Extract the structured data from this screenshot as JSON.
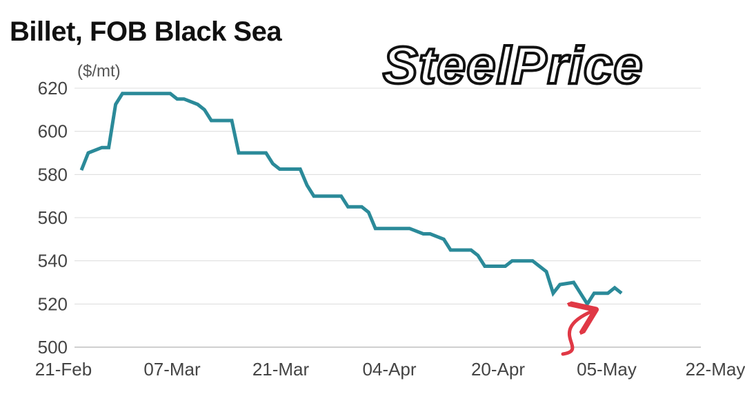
{
  "chart_data": {
    "type": "line",
    "title": "Billet, FOB Black Sea",
    "ylabel": "($/mt)",
    "xlabel": "",
    "ylim": [
      500,
      620
    ],
    "yticks": [
      500,
      520,
      540,
      560,
      580,
      600,
      620
    ],
    "xtick_labels": [
      "21-Feb",
      "07-Mar",
      "21-Mar",
      "04-Apr",
      "20-Apr",
      "05-May",
      "22-May"
    ],
    "x_range": [
      "21-Feb",
      "22-May"
    ],
    "grid": true,
    "line_color": "#2b8a99",
    "series": [
      {
        "points": [
          [
            "21-Feb",
            582
          ],
          [
            "22-Feb",
            590
          ],
          [
            "24-Feb",
            592.5
          ],
          [
            "25-Feb",
            592.5
          ],
          [
            "26-Feb",
            612.5
          ],
          [
            "27-Feb",
            617.5
          ],
          [
            "01-Mar",
            617.5
          ],
          [
            "02-Mar",
            617.5
          ],
          [
            "03-Mar",
            617.5
          ],
          [
            "04-Mar",
            617.5
          ],
          [
            "06-Mar",
            617.5
          ],
          [
            "07-Mar",
            615
          ],
          [
            "08-Mar",
            615
          ],
          [
            "10-Mar",
            612.5
          ],
          [
            "11-Mar",
            610
          ],
          [
            "12-Mar",
            605
          ],
          [
            "14-Mar",
            605
          ],
          [
            "15-Mar",
            605
          ],
          [
            "16-Mar",
            590
          ],
          [
            "17-Mar",
            590
          ],
          [
            "18-Mar",
            590
          ],
          [
            "20-Mar",
            590
          ],
          [
            "21-Mar",
            585
          ],
          [
            "22-Mar",
            582.5
          ],
          [
            "24-Mar",
            582.5
          ],
          [
            "25-Mar",
            582.5
          ],
          [
            "26-Mar",
            575
          ],
          [
            "27-Mar",
            570
          ],
          [
            "29-Mar",
            570
          ],
          [
            "30-Mar",
            570
          ],
          [
            "31-Mar",
            570
          ],
          [
            "01-Apr",
            565
          ],
          [
            "03-Apr",
            565
          ],
          [
            "04-Apr",
            562.5
          ],
          [
            "05-Apr",
            555
          ],
          [
            "07-Apr",
            555
          ],
          [
            "08-Apr",
            555
          ],
          [
            "09-Apr",
            555
          ],
          [
            "10-Apr",
            555
          ],
          [
            "12-Apr",
            552.5
          ],
          [
            "13-Apr",
            552.5
          ],
          [
            "15-Apr",
            550
          ],
          [
            "16-Apr",
            545
          ],
          [
            "17-Apr",
            545
          ],
          [
            "19-Apr",
            545
          ],
          [
            "20-Apr",
            542.5
          ],
          [
            "21-Apr",
            537.5
          ],
          [
            "23-Apr",
            537.5
          ],
          [
            "24-Apr",
            537.5
          ],
          [
            "25-Apr",
            540
          ],
          [
            "26-Apr",
            540
          ],
          [
            "28-Apr",
            540
          ],
          [
            "29-Apr",
            537.5
          ],
          [
            "30-Apr",
            535
          ],
          [
            "01-May",
            525
          ],
          [
            "02-May",
            529
          ],
          [
            "04-May",
            530
          ],
          [
            "05-May",
            525
          ],
          [
            "06-May",
            520
          ],
          [
            "07-May",
            525
          ],
          [
            "09-May",
            525
          ],
          [
            "10-May",
            527.5
          ],
          [
            "11-May",
            525
          ]
        ]
      }
    ],
    "annotation": {
      "type": "arrow",
      "color": "#e03845",
      "points_to": [
        "06-May",
        520
      ]
    },
    "watermark": "SteelPrice"
  }
}
